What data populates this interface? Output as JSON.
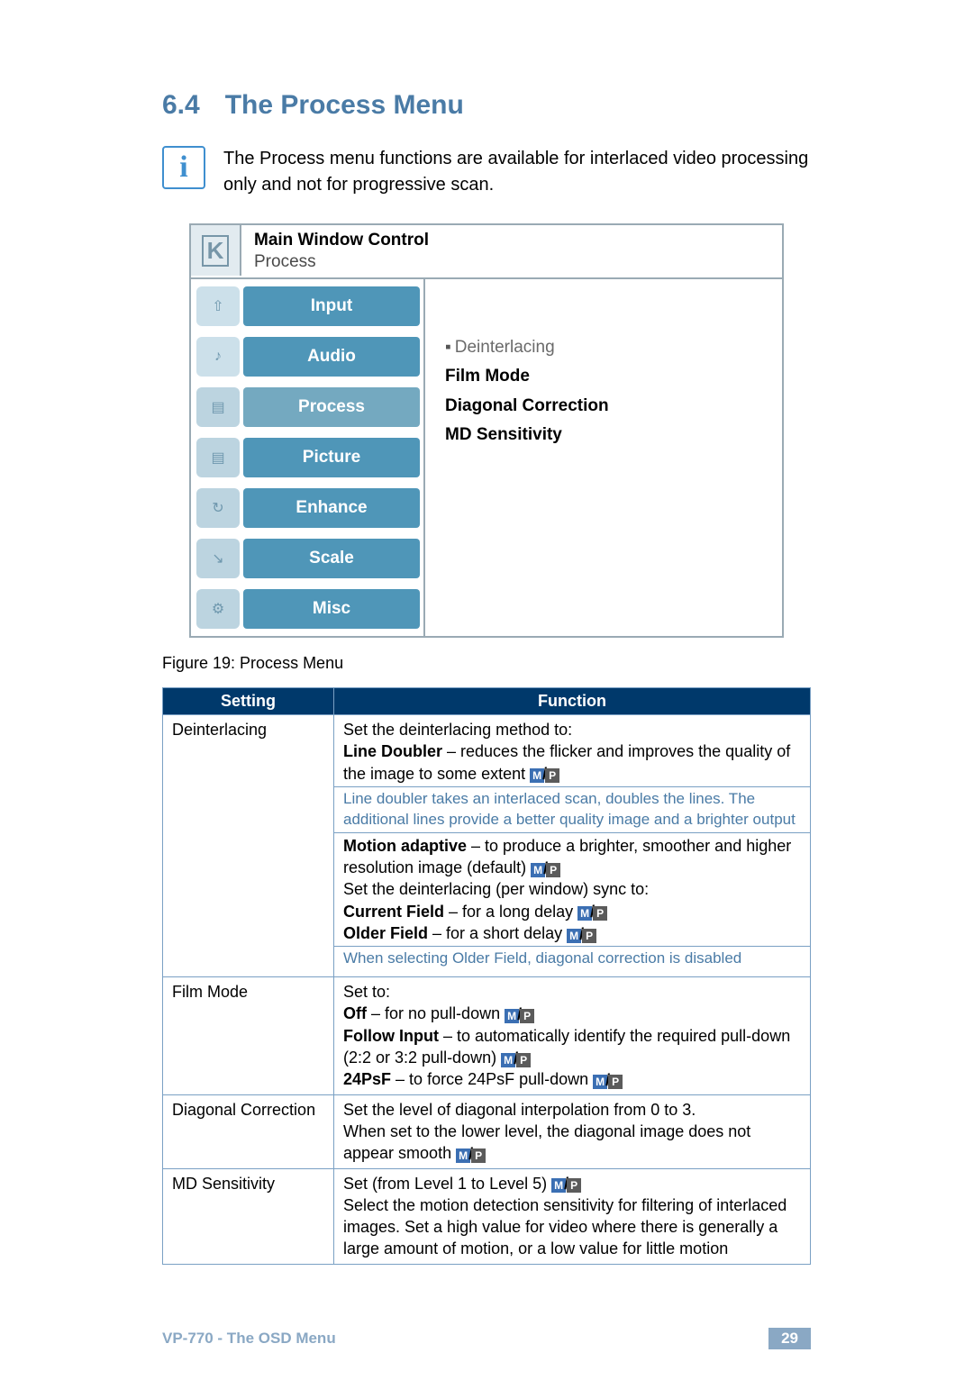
{
  "heading": {
    "number": "6.4",
    "title": "The Process Menu"
  },
  "info_note": "The Process menu functions are available for interlaced video processing only and not for progressive scan.",
  "osd": {
    "header_line1": "Main Window Control",
    "header_line2": "Process",
    "sidebar_items": [
      {
        "label": "Input",
        "icon_bg": "#cce0ea",
        "label_bg": "#4f96b8",
        "glyph": "⇧"
      },
      {
        "label": "Audio",
        "icon_bg": "#cce0ea",
        "label_bg": "#4f96b8",
        "glyph": "♪"
      },
      {
        "label": "Process",
        "icon_bg": "#bcd4e0",
        "label_bg": "#74a9c0",
        "glyph": "▤"
      },
      {
        "label": "Picture",
        "icon_bg": "#bcd4e0",
        "label_bg": "#4f96b8",
        "glyph": "▤"
      },
      {
        "label": "Enhance",
        "icon_bg": "#bcd4e0",
        "label_bg": "#4f96b8",
        "glyph": "↻"
      },
      {
        "label": "Scale",
        "icon_bg": "#bcd4e0",
        "label_bg": "#4f96b8",
        "glyph": "↘"
      },
      {
        "label": "Misc",
        "icon_bg": "#bcd4e0",
        "label_bg": "#4f96b8",
        "glyph": "⚙"
      }
    ],
    "options": [
      {
        "label": "Deinterlacing",
        "selected": true,
        "bold": false
      },
      {
        "label": "Film Mode",
        "selected": false,
        "bold": true
      },
      {
        "label": "Diagonal Correction",
        "selected": false,
        "bold": true
      },
      {
        "label": "MD Sensitivity",
        "selected": false,
        "bold": true
      }
    ]
  },
  "figure_caption": "Figure 19: Process Menu",
  "table": {
    "headers": {
      "col1": "Setting",
      "col2": "Function"
    },
    "rows": [
      {
        "setting": "Deinterlacing",
        "chunks": [
          {
            "type": "p",
            "html": "Set the deinterlacing method to:"
          },
          {
            "type": "p",
            "html": "<b>Line Doubler</b> – reduces the flicker and improves the quality of the image to some extent {MP}"
          },
          {
            "type": "note",
            "html": "Line doubler takes an interlaced scan, doubles the lines. The additional lines provide a better quality image and a brighter output"
          },
          {
            "type": "p",
            "html": "<b>Motion adaptive</b> – to produce a brighter, smoother and higher resolution image (default) {MP}"
          },
          {
            "type": "p",
            "html": "Set the deinterlacing (per window) sync to:"
          },
          {
            "type": "p",
            "html": "<b>Current Field</b> – for a long delay {MP}"
          },
          {
            "type": "p",
            "html": "<b>Older Field</b> – for a short delay {MP}"
          },
          {
            "type": "note",
            "html": "When selecting Older Field, diagonal correction is disabled"
          }
        ]
      },
      {
        "setting": "Film Mode",
        "chunks": [
          {
            "type": "p",
            "html": "Set to:"
          },
          {
            "type": "p",
            "html": "<b>Off</b> – for no pull-down {MP}"
          },
          {
            "type": "p",
            "html": "<b>Follow Input</b> – to automatically identify the required pull-down (2:2 or 3:2 pull-down) {MP}"
          },
          {
            "type": "p",
            "html": "<b>24PsF</b> – to force 24PsF pull-down {MP}"
          }
        ]
      },
      {
        "setting": "Diagonal Correction",
        "chunks": [
          {
            "type": "p",
            "html": "Set the level of diagonal interpolation from 0 to 3."
          },
          {
            "type": "p",
            "html": "When set to the lower level, the diagonal image does not appear smooth {MP}"
          }
        ]
      },
      {
        "setting": "MD Sensitivity",
        "chunks": [
          {
            "type": "p",
            "html": "Set (from Level 1 to Level 5) {MP}"
          },
          {
            "type": "p",
            "html": "Select the motion detection sensitivity for filtering of interlaced images. Set a high value for video where there is generally a large amount of motion, or a low value for little motion"
          }
        ]
      }
    ]
  },
  "footer": {
    "left": "VP-770 - The OSD Menu",
    "page": "29"
  },
  "colors": {
    "heading": "#4a7ba6",
    "table_header_bg": "#00396b",
    "table_border": "#7aa0c4",
    "note": "#4a7ba6"
  }
}
